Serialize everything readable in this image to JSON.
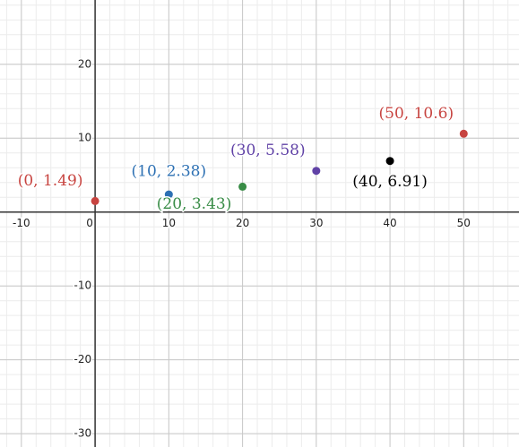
{
  "chart_data": {
    "type": "scatter",
    "x": [
      0,
      10,
      20,
      30,
      40,
      50
    ],
    "values": [
      1.49,
      2.38,
      3.43,
      5.58,
      6.91,
      10.6
    ],
    "value_labels": [
      "(0, 1.49)",
      "(10, 2.38)",
      "(20, 3.43)",
      "(30, 5.58)",
      "(40, 6.91)",
      "(50, 10.6)"
    ],
    "colors": [
      "#c74440",
      "#2d70b3",
      "#388c46",
      "#6042a6",
      "#000000",
      "#c74440"
    ],
    "xlim": [
      -12.9,
      57.5
    ],
    "ylim": [
      -31.8,
      28.7
    ],
    "xticks": [
      -10,
      0,
      10,
      20,
      30,
      40,
      50
    ],
    "yticks": [
      -30,
      -20,
      -10,
      10,
      20
    ],
    "grid": true
  }
}
